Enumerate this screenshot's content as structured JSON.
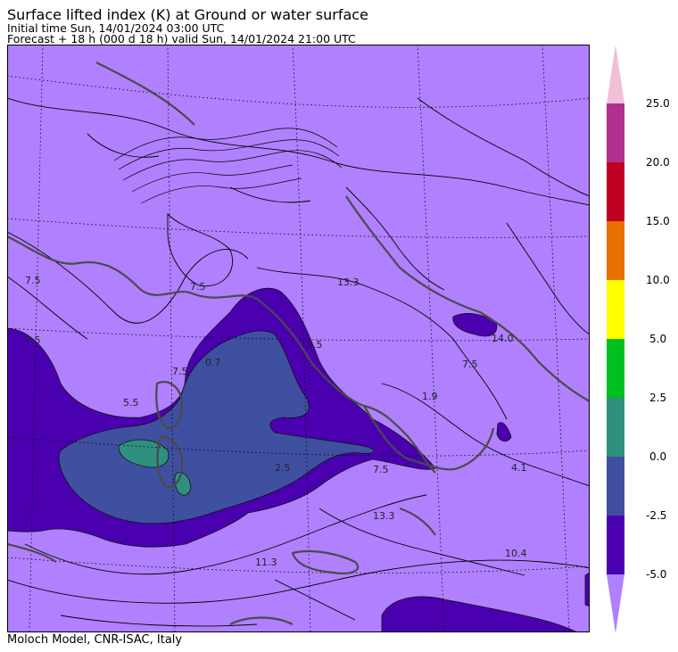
{
  "header": {
    "title": "Surface lifted index (K) at Ground or water surface",
    "initial_time": "Initial time  Sun, 14/01/2024  03:00 UTC",
    "forecast": "Forecast  +  18 h  (000 d 18 h)  valid Sun, 14/01/2024 21:00 UTC"
  },
  "footer": {
    "credit": "Moloch Model, CNR-ISAC, Italy"
  },
  "colorbar": {
    "ticks": [
      "25.0",
      "20.0",
      "15.0",
      "10.0",
      "5.0",
      "2.5",
      "0.0",
      "-2.5",
      "-5.0"
    ],
    "colors": {
      "over": "#f0c0d8",
      "b20_25": "#b03090",
      "b15_20": "#c00020",
      "b10_15": "#e87000",
      "b5_10": "#ffff00",
      "b2_5": "#00c020",
      "b0_2": "#309080",
      "bm2_0": "#4050a0",
      "bm5_m2": "#4b00b0",
      "under": "#b080ff"
    }
  },
  "map": {
    "background_color": "#b080ff",
    "contour_labels": [
      "7.5",
      "7.5",
      "5.5",
      "7.5",
      "13.3",
      "0.7",
      "1.9",
      "2.5",
      "7.5",
      "14.0",
      "7.5",
      "4.1",
      "13.3",
      "10.4",
      "11.3",
      "7.5",
      "5.5"
    ]
  }
}
